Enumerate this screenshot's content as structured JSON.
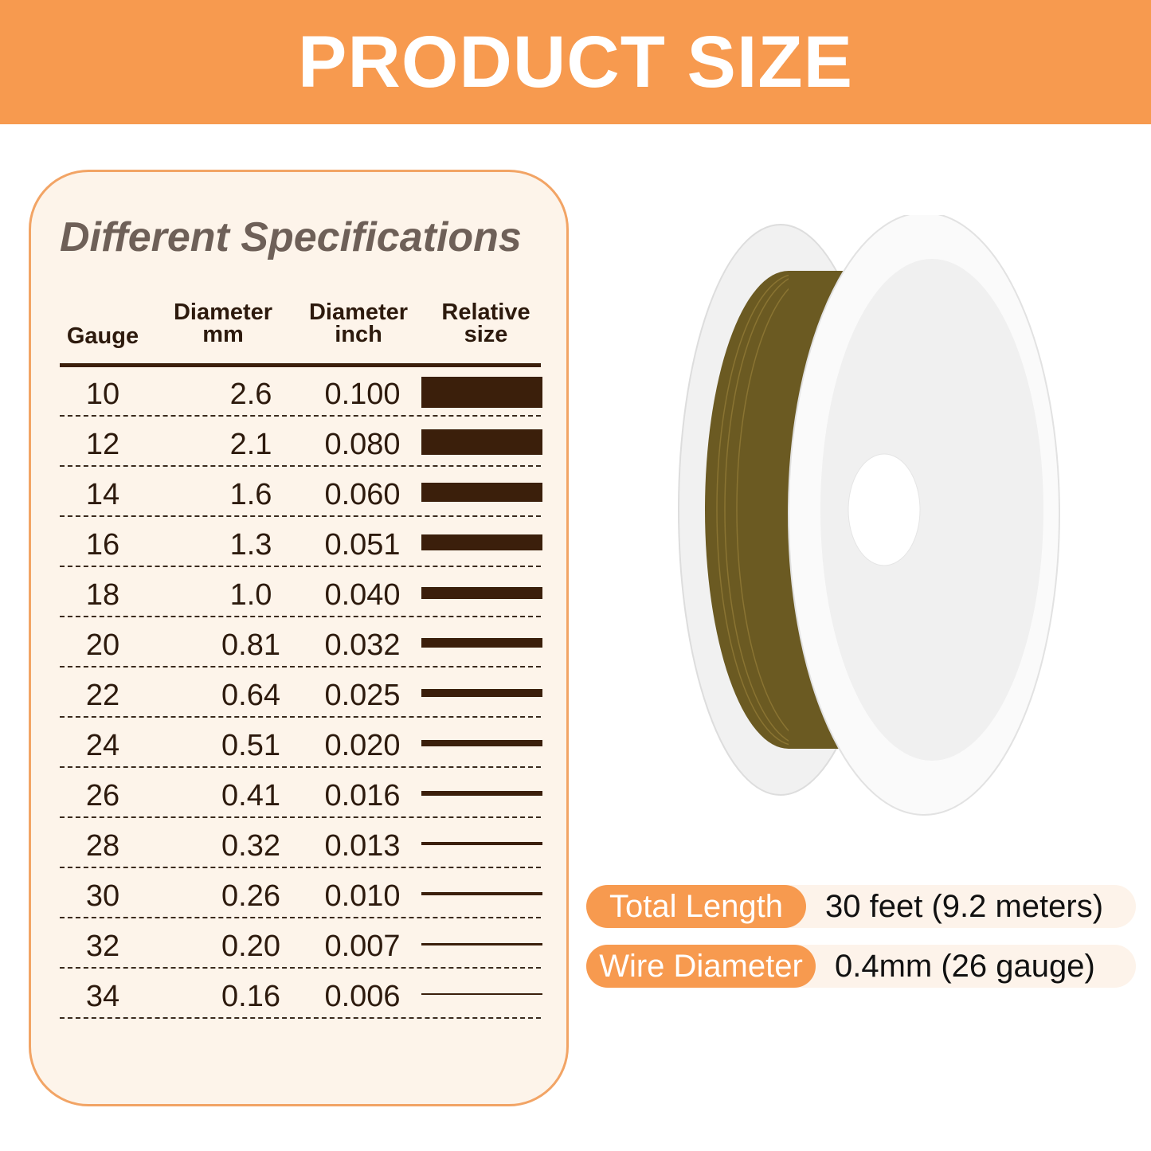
{
  "banner": {
    "title": "PRODUCT SIZE"
  },
  "table": {
    "title": "Different Specifications",
    "headers": [
      "Gauge",
      "Diameter\nmm",
      "Diameter\ninch",
      "Relative\nsize"
    ],
    "rows": [
      {
        "gauge": "10",
        "mm": "2.6",
        "inch": "0.100"
      },
      {
        "gauge": "12",
        "mm": "2.1",
        "inch": "0.080"
      },
      {
        "gauge": "14",
        "mm": "1.6",
        "inch": "0.060"
      },
      {
        "gauge": "16",
        "mm": "1.3",
        "inch": "0.051"
      },
      {
        "gauge": "18",
        "mm": "1.0",
        "inch": "0.040"
      },
      {
        "gauge": "20",
        "mm": "0.81",
        "inch": "0.032"
      },
      {
        "gauge": "22",
        "mm": "0.64",
        "inch": "0.025"
      },
      {
        "gauge": "24",
        "mm": "0.51",
        "inch": "0.020"
      },
      {
        "gauge": "26",
        "mm": "0.41",
        "inch": "0.016"
      },
      {
        "gauge": "28",
        "mm": "0.32",
        "inch": "0.013"
      },
      {
        "gauge": "30",
        "mm": "0.26",
        "inch": "0.010"
      },
      {
        "gauge": "32",
        "mm": "0.20",
        "inch": "0.007"
      },
      {
        "gauge": "34",
        "mm": "0.16",
        "inch": "0.006"
      }
    ]
  },
  "specs": {
    "total_length": {
      "label": "Total Length",
      "value": "30 feet (9.2 meters)"
    },
    "wire_diameter": {
      "label": "Wire Diameter",
      "value": "0.4mm (26 gauge)"
    }
  },
  "colors": {
    "accent": "#f79a4f",
    "wire": "#5a4a1c",
    "bar": "#3b1f0b"
  }
}
